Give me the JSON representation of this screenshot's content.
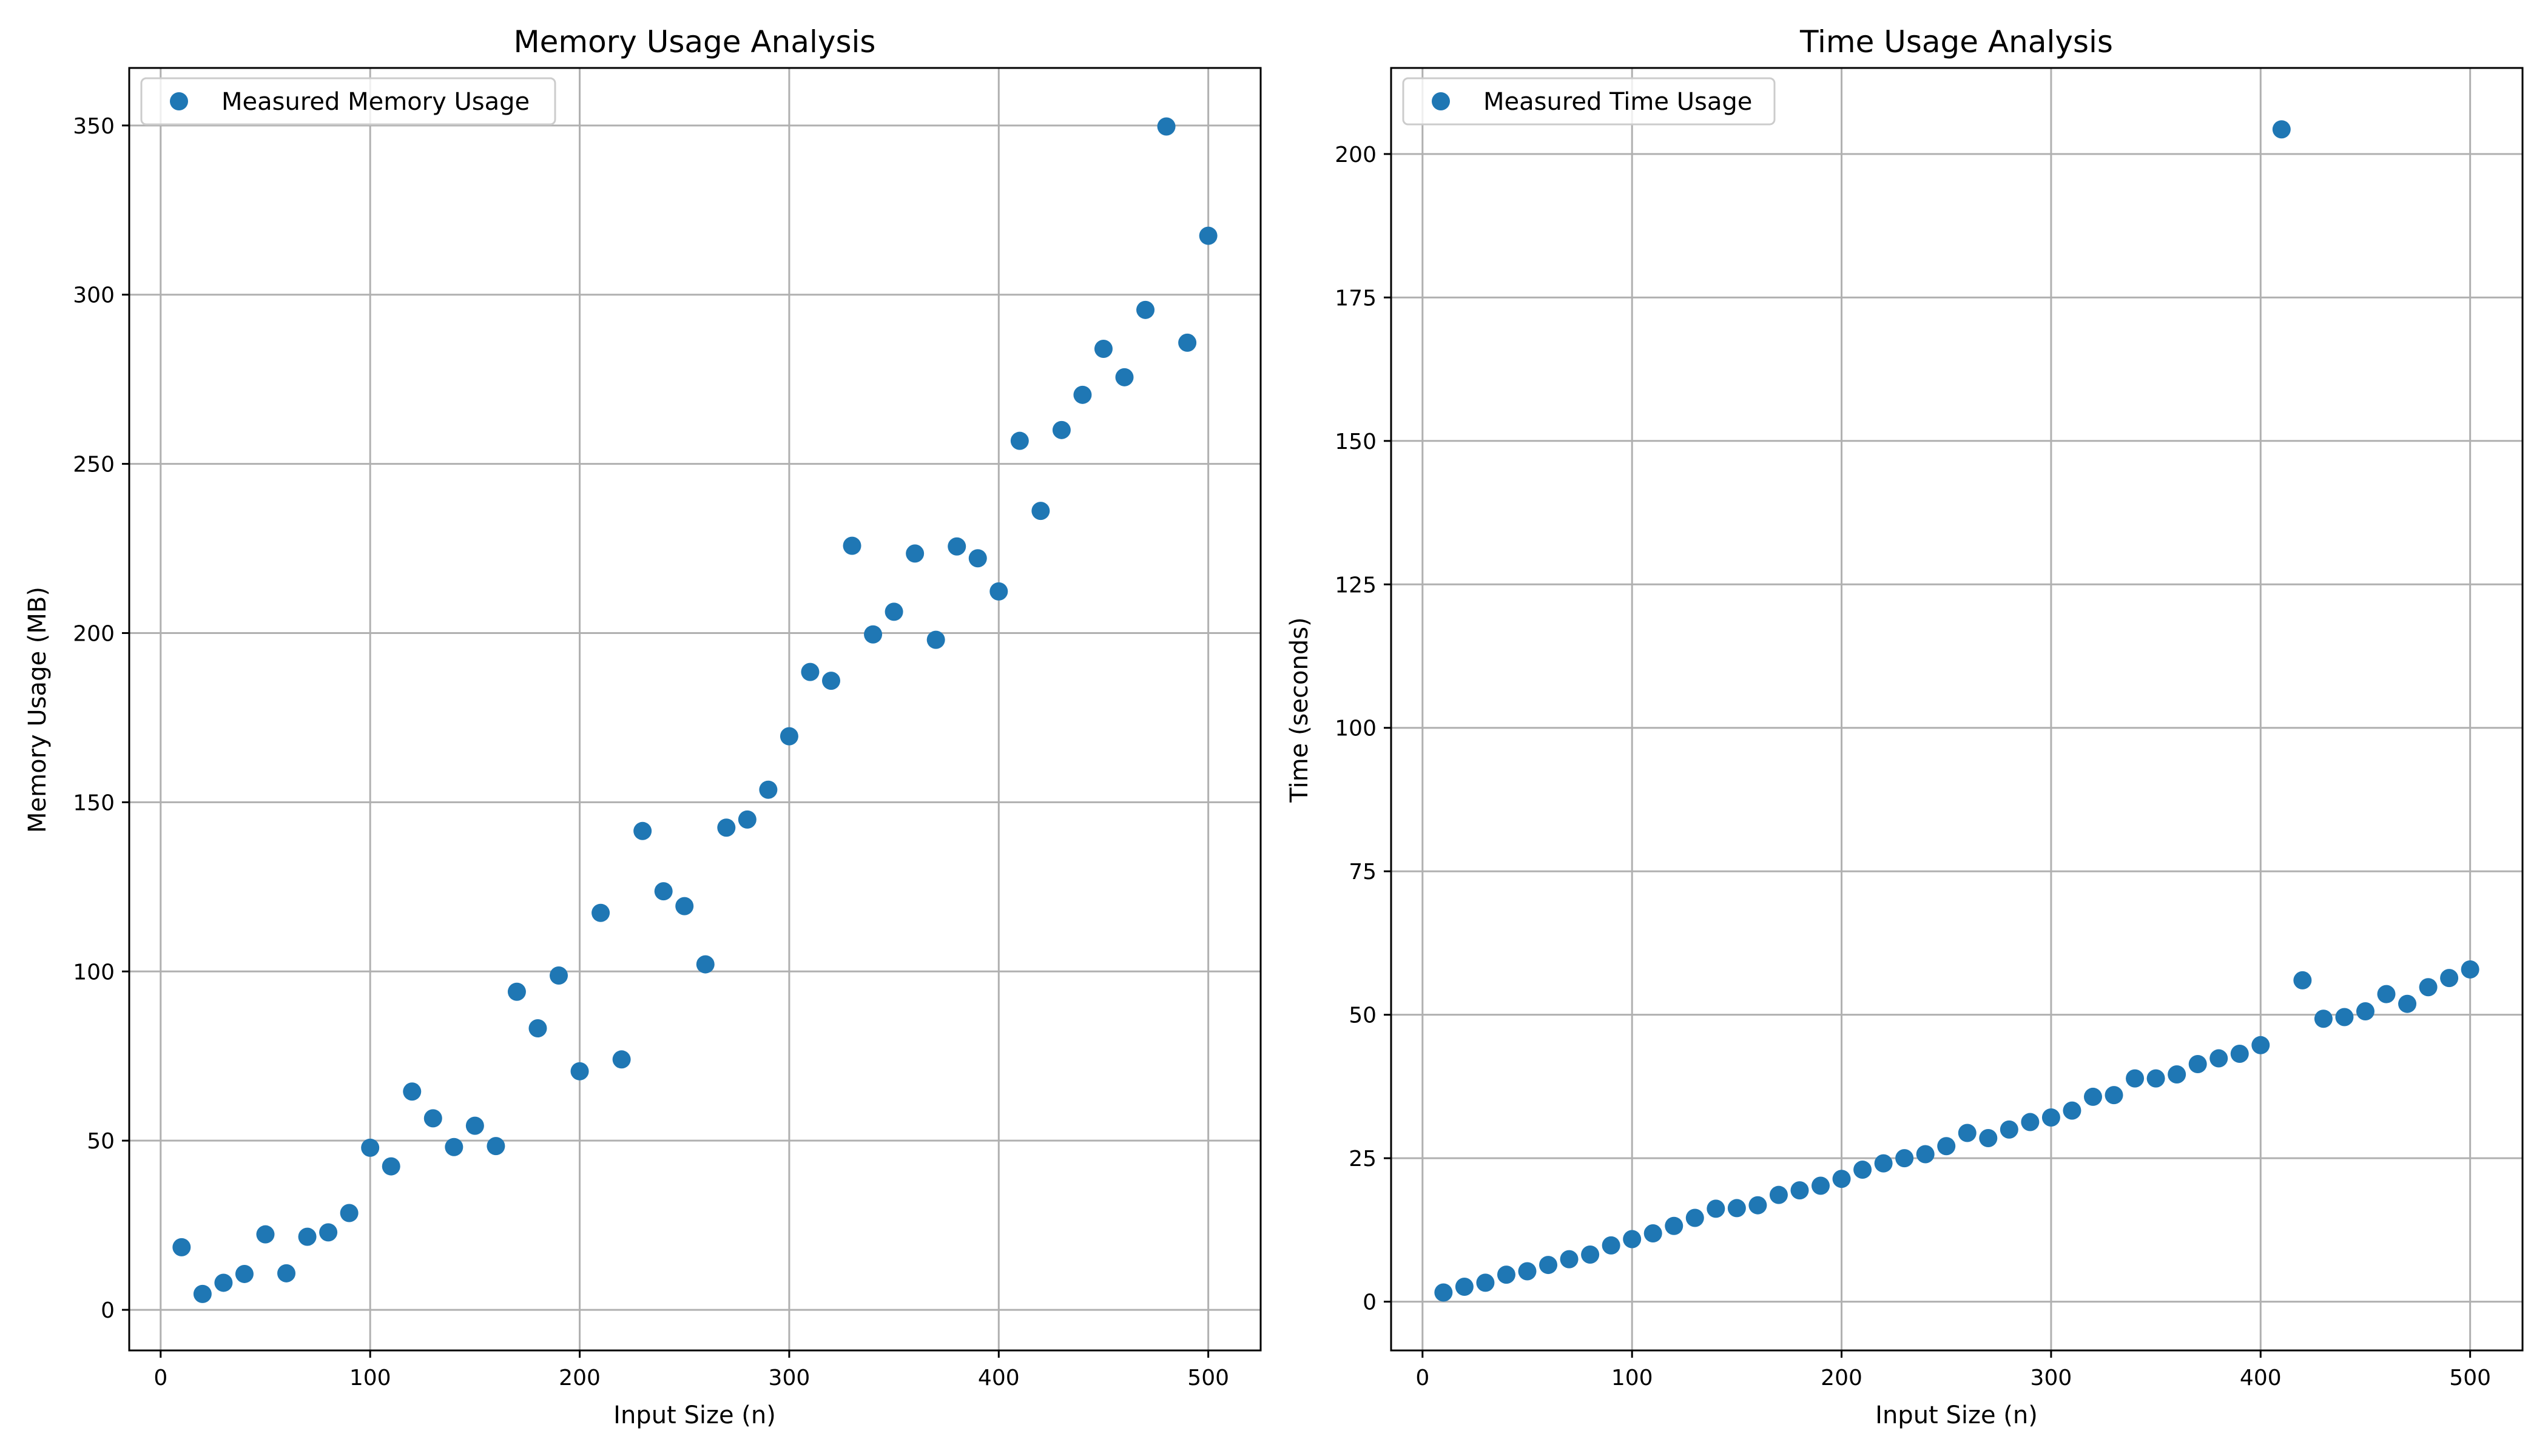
{
  "chart_data": [
    {
      "type": "scatter",
      "title": "Memory Usage Analysis",
      "xlabel": "Input Size (n)",
      "ylabel": "Memory Usage (MB)",
      "xlim": [
        -15,
        525
      ],
      "ylim": [
        -12,
        367
      ],
      "xticks": [
        0,
        100,
        200,
        300,
        400,
        500
      ],
      "yticks": [
        0,
        50,
        100,
        150,
        200,
        250,
        300,
        350
      ],
      "grid": true,
      "legend_position": "top-left",
      "color": "#1f77b4",
      "series": [
        {
          "name": "Measured Memory Usage",
          "x": [
            10,
            20,
            30,
            40,
            50,
            60,
            70,
            80,
            90,
            100,
            110,
            120,
            130,
            140,
            150,
            160,
            170,
            180,
            190,
            200,
            210,
            220,
            230,
            240,
            250,
            260,
            270,
            280,
            290,
            300,
            310,
            320,
            330,
            340,
            350,
            360,
            370,
            380,
            390,
            400,
            410,
            420,
            430,
            440,
            450,
            460,
            470,
            480,
            490,
            500
          ],
          "y": [
            18.5,
            4.7,
            8.0,
            10.6,
            22.3,
            10.8,
            21.6,
            22.9,
            28.6,
            47.9,
            42.4,
            64.5,
            56.6,
            48.1,
            54.4,
            48.4,
            94.0,
            83.2,
            98.8,
            70.5,
            117.3,
            74.0,
            141.5,
            123.7,
            119.3,
            102.1,
            142.5,
            144.9,
            153.7,
            169.5,
            188.5,
            185.9,
            225.8,
            199.6,
            206.3,
            223.5,
            198.0,
            225.6,
            222.1,
            212.3,
            256.8,
            236.1,
            260.0,
            270.4,
            284.0,
            275.6,
            295.5,
            349.7,
            285.8,
            317.4
          ]
        }
      ]
    },
    {
      "type": "scatter",
      "title": "Time Usage Analysis",
      "xlabel": "Input Size (n)",
      "ylabel": "Time (seconds)",
      "xlim": [
        -15,
        525
      ],
      "ylim": [
        -8.5,
        215
      ],
      "xticks": [
        0,
        100,
        200,
        300,
        400,
        500
      ],
      "yticks": [
        0,
        25,
        50,
        75,
        100,
        125,
        150,
        175,
        200
      ],
      "grid": true,
      "legend_position": "top-left",
      "color": "#1f77b4",
      "series": [
        {
          "name": "Measured Time Usage",
          "x": [
            10,
            20,
            30,
            40,
            50,
            60,
            70,
            80,
            90,
            100,
            110,
            120,
            130,
            140,
            150,
            160,
            170,
            180,
            190,
            200,
            210,
            220,
            230,
            240,
            250,
            260,
            270,
            280,
            290,
            300,
            310,
            320,
            330,
            340,
            350,
            360,
            370,
            380,
            390,
            400,
            410,
            420,
            430,
            440,
            450,
            460,
            470,
            480,
            490,
            500
          ],
          "y": [
            1.6,
            2.6,
            3.3,
            4.7,
            5.3,
            6.4,
            7.4,
            8.2,
            9.8,
            10.9,
            11.9,
            13.2,
            14.6,
            16.2,
            16.3,
            16.8,
            18.6,
            19.4,
            20.2,
            21.4,
            23.0,
            24.1,
            25.0,
            25.7,
            27.1,
            29.4,
            28.5,
            30.0,
            31.3,
            32.1,
            33.3,
            35.7,
            36.0,
            38.9,
            38.9,
            39.6,
            41.4,
            42.4,
            43.2,
            44.7,
            204.3,
            56.0,
            49.3,
            49.6,
            50.6,
            53.6,
            51.9,
            54.8,
            56.4,
            57.9
          ]
        }
      ]
    }
  ]
}
